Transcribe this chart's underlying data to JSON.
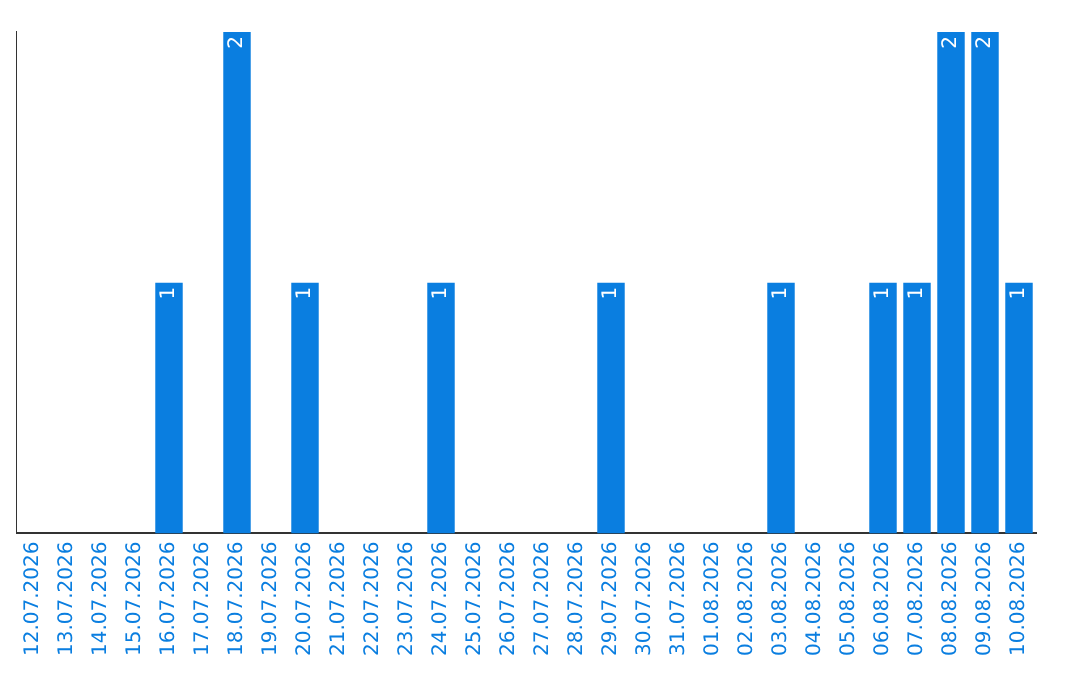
{
  "chart_data": {
    "type": "bar",
    "categories": [
      "12.07.2026",
      "13.07.2026",
      "14.07.2026",
      "15.07.2026",
      "16.07.2026",
      "17.07.2026",
      "18.07.2026",
      "19.07.2026",
      "20.07.2026",
      "21.07.2026",
      "22.07.2026",
      "23.07.2026",
      "24.07.2026",
      "25.07.2026",
      "26.07.2026",
      "27.07.2026",
      "28.07.2026",
      "29.07.2026",
      "30.07.2026",
      "31.07.2026",
      "01.08.2026",
      "02.08.2026",
      "03.08.2026",
      "04.08.2026",
      "05.08.2026",
      "06.08.2026",
      "07.08.2026",
      "08.08.2026",
      "09.08.2026",
      "10.08.2026"
    ],
    "values": [
      0,
      0,
      0,
      0,
      1,
      0,
      2,
      0,
      1,
      0,
      0,
      0,
      1,
      0,
      0,
      0,
      0,
      1,
      0,
      0,
      0,
      0,
      1,
      0,
      0,
      1,
      1,
      2,
      2,
      1
    ],
    "value_labels": [
      null,
      null,
      null,
      null,
      "1",
      null,
      "2",
      null,
      "1",
      null,
      null,
      null,
      "1",
      null,
      null,
      null,
      null,
      "1",
      null,
      null,
      null,
      null,
      "1",
      null,
      null,
      "1",
      "1",
      "2",
      "2",
      "1"
    ],
    "color": "#0a7ee0",
    "grid": false,
    "legend": false,
    "tick_labels": "x"
  }
}
